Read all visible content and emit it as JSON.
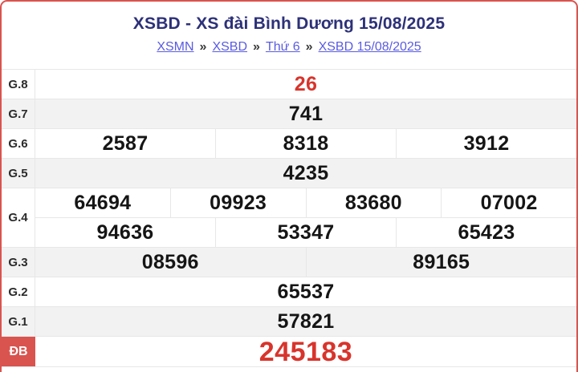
{
  "header": {
    "title": "XSBD - XS đài Bình Dương 15/08/2025",
    "breadcrumb_separator": "»",
    "breadcrumb": [
      {
        "label": "XSMN"
      },
      {
        "label": "XSBD"
      },
      {
        "label": "Thứ 6"
      },
      {
        "label": "XSBD 15/08/2025"
      }
    ]
  },
  "results": {
    "rows": [
      {
        "label": "G.8",
        "groups": [
          [
            "26"
          ]
        ],
        "accent": true
      },
      {
        "label": "G.7",
        "groups": [
          [
            "741"
          ]
        ]
      },
      {
        "label": "G.6",
        "groups": [
          [
            "2587",
            "8318",
            "3912"
          ]
        ]
      },
      {
        "label": "G.5",
        "groups": [
          [
            "4235"
          ]
        ]
      },
      {
        "label": "G.4",
        "groups": [
          [
            "64694",
            "09923",
            "83680",
            "07002"
          ],
          [
            "94636",
            "53347",
            "65423"
          ]
        ]
      },
      {
        "label": "G.3",
        "groups": [
          [
            "08596",
            "89165"
          ]
        ]
      },
      {
        "label": "G.2",
        "groups": [
          [
            "65537"
          ]
        ]
      },
      {
        "label": "G.1",
        "groups": [
          [
            "57821"
          ]
        ]
      },
      {
        "label": "ĐB",
        "groups": [
          [
            "245183"
          ]
        ],
        "special": true
      }
    ]
  },
  "colors": {
    "accent_red": "#d8342c",
    "border_red": "#d9534f",
    "title_navy": "#2d3178",
    "link_blue": "#5a5be0",
    "row_shade": "#f2f2f2",
    "divider": "#e7e7e7"
  }
}
